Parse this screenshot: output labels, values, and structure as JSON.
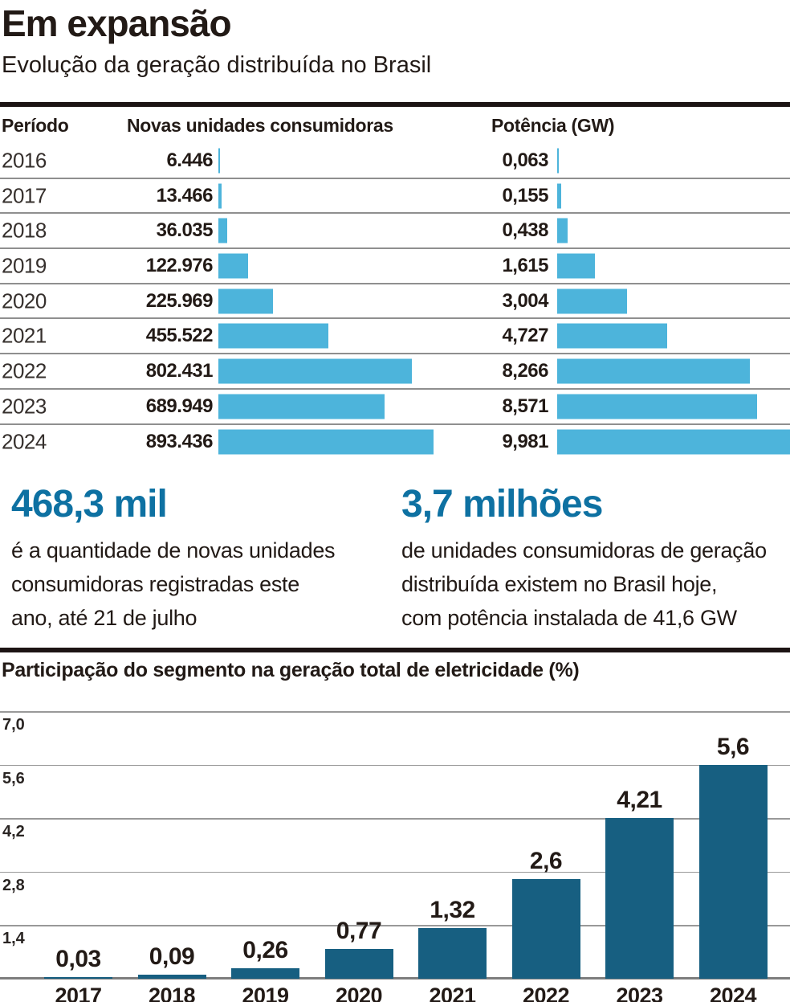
{
  "header": {
    "title": "Em expansão",
    "subtitle": "Evolução da geração distribuída no Brasil"
  },
  "table": {
    "columns": [
      "Período",
      "Novas unidades consumidoras",
      "Potência (GW)"
    ],
    "rows": [
      {
        "period": "2016",
        "units": "6.446",
        "power": "0,063"
      },
      {
        "period": "2017",
        "units": "13.466",
        "power": "0,155"
      },
      {
        "period": "2018",
        "units": "36.035",
        "power": "0,438"
      },
      {
        "period": "2019",
        "units": "122.976",
        "power": "1,615"
      },
      {
        "period": "2020",
        "units": "225.969",
        "power": "3,004"
      },
      {
        "period": "2021",
        "units": "455.522",
        "power": "4,727"
      },
      {
        "period": "2022",
        "units": "802.431",
        "power": "8,266"
      },
      {
        "period": "2023",
        "units": "689.949",
        "power": "8,571"
      },
      {
        "period": "2024",
        "units": "893.436",
        "power": "9,981"
      }
    ]
  },
  "stats": [
    {
      "value": "468,3 mil",
      "lines": [
        "é a quantidade de novas unidades",
        "consumidoras registradas este",
        "ano, até 21 de julho"
      ]
    },
    {
      "value": "3,7 milhões",
      "lines": [
        "de unidades consumidoras de geração",
        "distribuída existem no Brasil hoje,",
        "com potência instalada de 41,6 GW"
      ]
    }
  ],
  "chart_data": [
    {
      "type": "bar",
      "orientation": "horizontal",
      "title": "Evolução da geração distribuída no Brasil",
      "categories": [
        "2016",
        "2017",
        "2018",
        "2019",
        "2020",
        "2021",
        "2022",
        "2023",
        "2024"
      ],
      "series": [
        {
          "name": "Novas unidades consumidoras",
          "values": [
            6446,
            13466,
            36035,
            122976,
            225969,
            455522,
            802431,
            689949,
            893436
          ]
        },
        {
          "name": "Potência (GW)",
          "values": [
            0.063,
            0.155,
            0.438,
            1.615,
            3.004,
            4.727,
            8.266,
            8.571,
            9.981
          ]
        }
      ],
      "grid": false,
      "legend": false
    },
    {
      "type": "bar",
      "title": "Participação do segmento na geração total de eletricidade (%)",
      "categories": [
        "2017",
        "2018",
        "2019",
        "2020",
        "2021",
        "2022",
        "2023",
        "2024"
      ],
      "values": [
        0.03,
        0.09,
        0.26,
        0.77,
        1.32,
        2.6,
        4.21,
        5.6
      ],
      "value_labels": [
        "0,03",
        "0,09",
        "0,26",
        "0,77",
        "1,32",
        "2,6",
        "4,21",
        "5,6"
      ],
      "xlabel": "",
      "ylabel": "%",
      "yticks": [
        7.0,
        5.6,
        4.2,
        2.8,
        1.4
      ],
      "ytick_labels": [
        "7,0",
        "5,6",
        "4,2",
        "2,8",
        "1,4"
      ],
      "ylim": [
        0,
        7.4
      ],
      "grid": true,
      "legend": false
    }
  ],
  "colors": {
    "bar_light": "#4db4db",
    "bar_dark": "#175f81",
    "stat_blue": "#0e71a2",
    "text": "#221a16",
    "rule": "#1c1413",
    "grid": "#999999"
  }
}
